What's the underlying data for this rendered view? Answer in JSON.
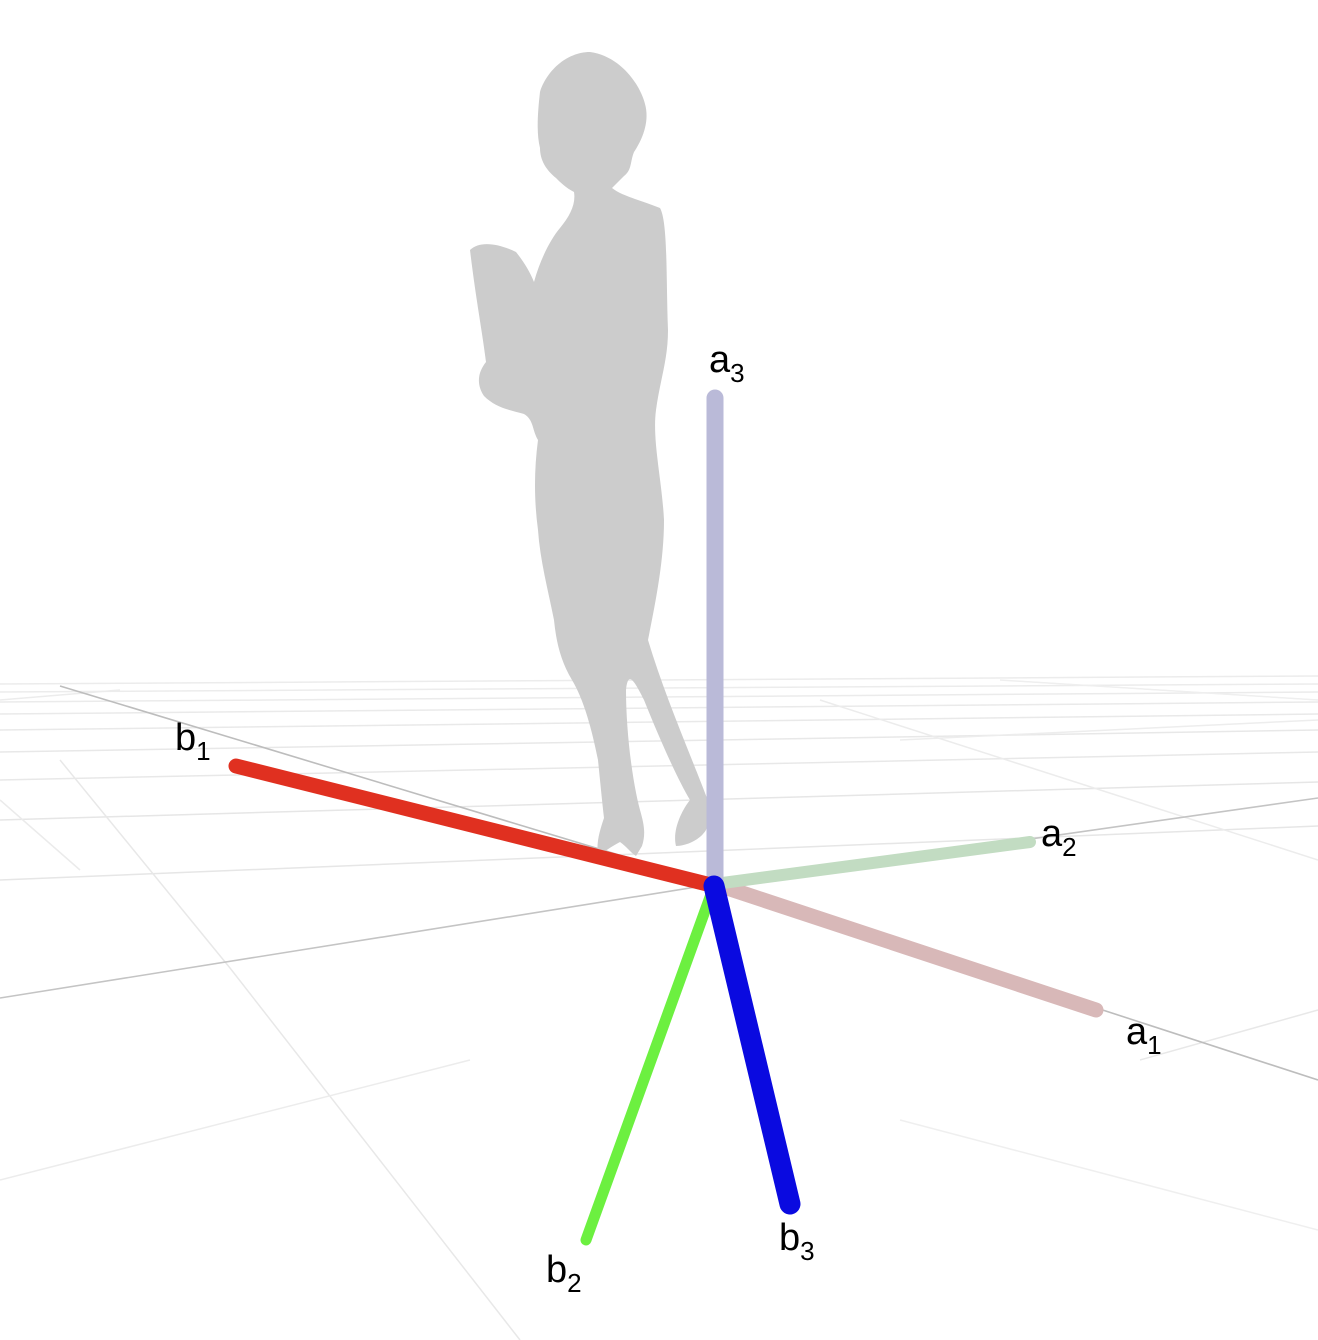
{
  "colors": {
    "background": "#ffffff",
    "grid": "#e6e6e6",
    "silhouette": "#cccccc",
    "a1": "#d8b8b8",
    "a2": "#c2dcc2",
    "a3": "#babad8",
    "b1": "#e03020",
    "b2": "#6cf040",
    "b3": "#0a0ae0"
  },
  "icons": {
    "figure": "standing-woman-silhouette"
  },
  "axes": {
    "a1": {
      "base": "a",
      "sub": "1"
    },
    "a2": {
      "base": "a",
      "sub": "2"
    },
    "a3": {
      "base": "a",
      "sub": "3"
    },
    "b1": {
      "base": "b",
      "sub": "1"
    },
    "b2": {
      "base": "b",
      "sub": "2"
    },
    "b3": {
      "base": "b",
      "sub": "3"
    }
  }
}
